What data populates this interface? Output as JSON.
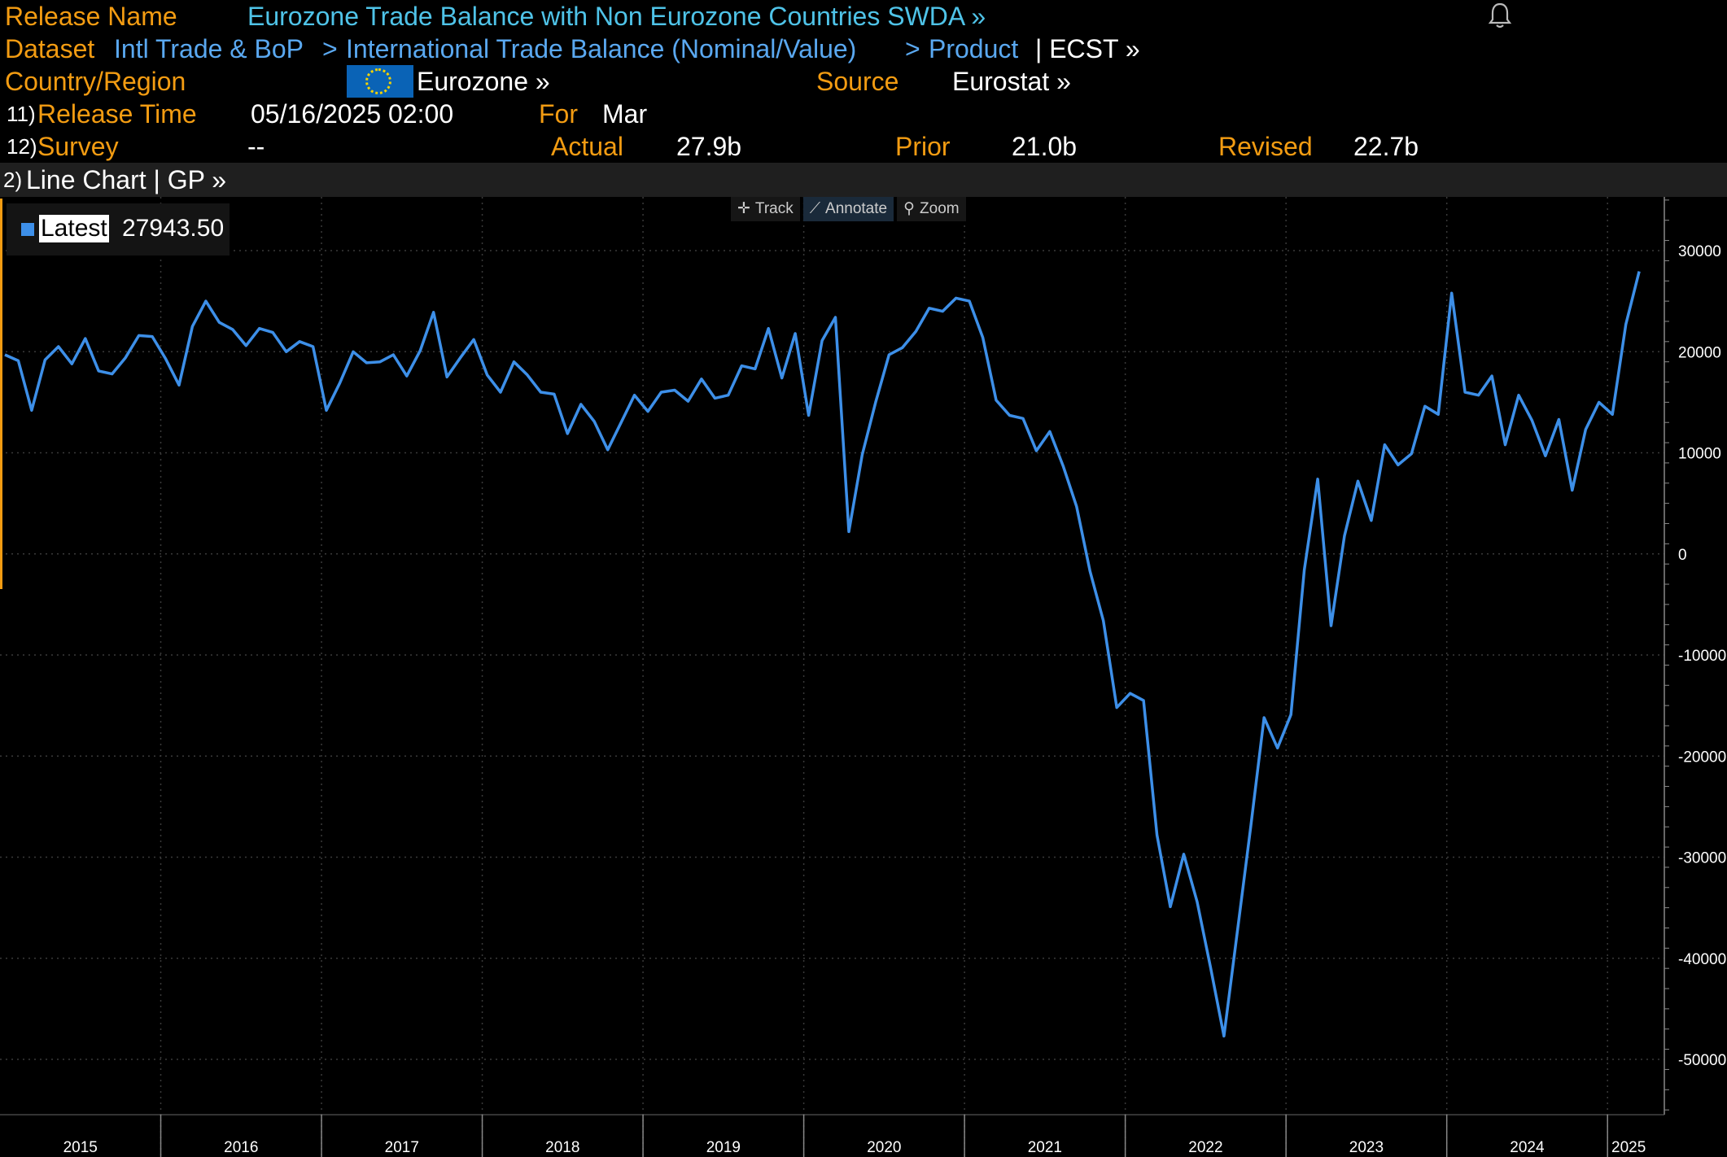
{
  "header": {
    "release_name_label": "Release Name",
    "release_name_value": "Eurozone Trade Balance with Non Eurozone Countries SWDA »",
    "dataset_label": "Dataset",
    "dataset_path_1": "Intl Trade & BoP",
    "dataset_path_2": "International Trade Balance (Nominal/Value)",
    "dataset_path_3": "Product",
    "dataset_suffix": "| ECST »",
    "country_label": "Country/Region",
    "country_value": "Eurozone »",
    "source_label": "Source",
    "source_value": "Eurostat »",
    "release_time_num": "11)",
    "release_time_label": "Release Time",
    "release_time_value": "05/16/2025 02:00",
    "for_label": "For",
    "for_value": "Mar",
    "survey_num": "12)",
    "survey_label": "Survey",
    "survey_value": "--",
    "actual_label": "Actual",
    "actual_value": "27.9b",
    "prior_label": "Prior",
    "prior_value": "21.0b",
    "revised_label": "Revised",
    "revised_value": "22.7b"
  },
  "section": {
    "num": "2)",
    "title": "Line Chart | GP »"
  },
  "toolbar": {
    "track": "Track",
    "annotate": "Annotate",
    "zoom": "Zoom"
  },
  "legend": {
    "label": "Latest",
    "value": "27943.50",
    "color": "#3d8fe8"
  },
  "chart_data": {
    "type": "line",
    "title": "",
    "xlabel": "",
    "ylabel": "",
    "ylim": [
      -55000,
      35000
    ],
    "yticks": [
      30000,
      20000,
      10000,
      0,
      -10000,
      -20000,
      -30000,
      -40000,
      -50000
    ],
    "ytick_labels": [
      "30000",
      "20000",
      "10000",
      "0",
      "-10000",
      "-20000",
      "-30000",
      "-40000",
      "-50000"
    ],
    "xticks": [
      "2015",
      "2016",
      "2017",
      "2018",
      "2019",
      "2020",
      "2021",
      "2022",
      "2023",
      "2024",
      "2025"
    ],
    "x_start": "2015-01",
    "x_end": "2025-03",
    "grid": true,
    "series": [
      {
        "name": "Latest",
        "color": "#3d8fe8",
        "values": [
          19700,
          19100,
          14200,
          19200,
          20500,
          18800,
          21300,
          18100,
          17800,
          19400,
          21600,
          21500,
          19300,
          16700,
          22500,
          25000,
          22900,
          22200,
          20600,
          22300,
          21900,
          20000,
          21000,
          20500,
          14200,
          16900,
          20000,
          18900,
          19000,
          19700,
          17600,
          20100,
          23900,
          17500,
          19400,
          21200,
          17700,
          16000,
          19000,
          17700,
          16000,
          15800,
          11900,
          14800,
          13100,
          10300,
          13000,
          15700,
          14100,
          16000,
          16200,
          15100,
          17300,
          15400,
          15700,
          18600,
          18300,
          22300,
          17400,
          21800,
          13700,
          21100,
          23400,
          2200,
          9800,
          15000,
          19700,
          20400,
          22000,
          24300,
          24000,
          25300,
          25000,
          21400,
          15200,
          13700,
          13400,
          10200,
          12100,
          8700,
          4700,
          -1700,
          -6600,
          -15200,
          -13800,
          -14500,
          -27800,
          -34900,
          -29700,
          -34400,
          -40900,
          -47700,
          -37400,
          -27000,
          -16200,
          -19200,
          -15900,
          -1600,
          7400,
          -7100,
          1800,
          7200,
          3300,
          10800,
          8800,
          9900,
          14600,
          13800,
          25800,
          16000,
          15700,
          17600,
          10800,
          15700,
          13200,
          9700,
          13300,
          6300,
          12300,
          15000,
          13800,
          22700,
          27943.5
        ]
      }
    ]
  }
}
